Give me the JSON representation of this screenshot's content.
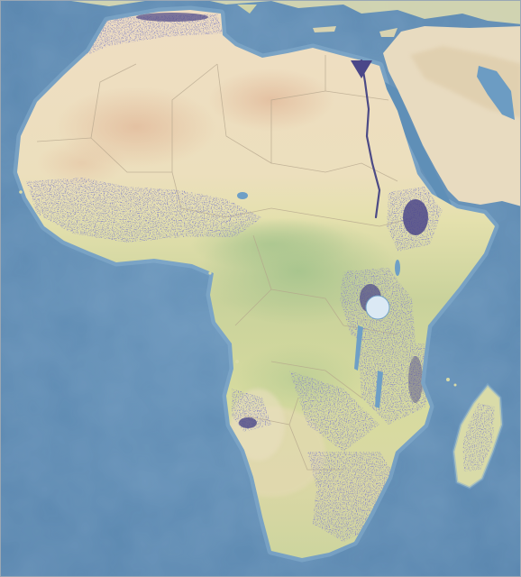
{
  "map": {
    "region": "Africa",
    "colors": {
      "ocean": "#5f8fb7",
      "ocean_deep": "#547fa7",
      "ocean_shelf": "#7ea6c6",
      "desert": "#eedcc1",
      "desert_warm": "#e5c5a5",
      "sahel": "#e9e0b6",
      "savanna": "#dfe0a6",
      "forest": "#a9c58e",
      "land_neutral": "#e2dcc0",
      "arabia": "#e8dbc0",
      "river_nile": "#4c4a86",
      "high_density": "#4b4789",
      "borders": "#b7a98f",
      "lakes": "#6e9fc6",
      "madagascar": "#d9dba8"
    },
    "legend": []
  }
}
